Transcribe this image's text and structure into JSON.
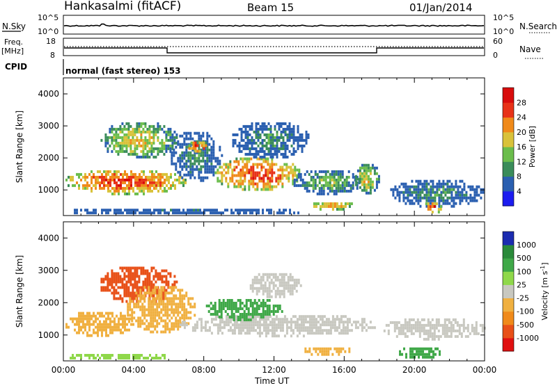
{
  "header": {
    "station": "Hankasalmi (fitACF)",
    "beam": "Beam 15",
    "date": "01/Jan/2014"
  },
  "nsky_panel": {
    "left_label": "N.Sky",
    "right_label": "N.Search",
    "left_ticks": [
      "10^5",
      "10^0"
    ],
    "right_ticks": [
      "10^5",
      "10^0"
    ]
  },
  "freq_panel": {
    "left_label_1": "Freq.",
    "left_label_2": "[MHz]",
    "right_label": "Nave",
    "left_ticks": [
      "18",
      "8"
    ],
    "right_ticks": [
      "60",
      "0"
    ]
  },
  "cpid_panel": {
    "label": "CPID",
    "text": "normal (fast stereo) 153"
  },
  "chart_data": [
    {
      "type": "heatmap",
      "name": "power",
      "xlabel": "Time UT",
      "ylabel": "Slant Range [km]",
      "xlim": [
        0,
        24
      ],
      "ylim": [
        200,
        4500
      ],
      "yticks": [
        "1000",
        "2000",
        "3000",
        "4000"
      ],
      "xticks": [
        "00:00",
        "04:00",
        "08:00",
        "12:00",
        "16:00",
        "20:00",
        "00:00"
      ],
      "colorbar": {
        "label": "Power [dB]",
        "ticks": [
          "4",
          "8",
          "12",
          "16",
          "20",
          "24",
          "28"
        ],
        "colors": [
          "#1c1cf0",
          "#2a5fb0",
          "#3a8c5a",
          "#6bbd4c",
          "#d9c23a",
          "#f08a1a",
          "#e83218",
          "#d80c0c"
        ]
      },
      "regions": [
        {
          "t0": 0.0,
          "t1": 7.0,
          "r0": 900,
          "r1": 1700,
          "level": 28
        },
        {
          "t0": 2.0,
          "t1": 6.5,
          "r0": 2000,
          "r1": 3200,
          "level": 20
        },
        {
          "t0": 6.0,
          "t1": 9.0,
          "r0": 1300,
          "r1": 2900,
          "level": 12
        },
        {
          "t0": 7.0,
          "t1": 8.2,
          "r0": 2200,
          "r1": 2600,
          "level": 28
        },
        {
          "t0": 8.5,
          "t1": 13.5,
          "r0": 1000,
          "r1": 2100,
          "level": 28
        },
        {
          "t0": 9.5,
          "t1": 14.0,
          "r0": 2000,
          "r1": 3200,
          "level": 12
        },
        {
          "t0": 13.0,
          "t1": 17.0,
          "r0": 900,
          "r1": 1700,
          "level": 16
        },
        {
          "t0": 14.0,
          "t1": 16.5,
          "r0": 400,
          "r1": 700,
          "level": 24
        },
        {
          "t0": 16.5,
          "t1": 18.0,
          "r0": 900,
          "r1": 1900,
          "level": 20
        },
        {
          "t0": 18.5,
          "t1": 24.0,
          "r0": 500,
          "r1": 1400,
          "level": 12
        },
        {
          "t0": 20.5,
          "t1": 21.5,
          "r0": 300,
          "r1": 700,
          "level": 28
        },
        {
          "t0": 0.0,
          "t1": 14.0,
          "r0": 250,
          "r1": 500,
          "level": 8
        }
      ]
    },
    {
      "type": "heatmap",
      "name": "velocity",
      "xlabel": "Time UT",
      "ylabel": "Slant Range [km]",
      "xlim": [
        0,
        24
      ],
      "ylim": [
        200,
        4500
      ],
      "yticks": [
        "1000",
        "2000",
        "3000",
        "4000"
      ],
      "xticks": [
        "00:00",
        "04:00",
        "08:00",
        "12:00",
        "16:00",
        "20:00",
        "00:00"
      ],
      "colorbar": {
        "label": "Velocity [m s^-1]",
        "ticks": [
          "1000",
          "500",
          "100",
          "25",
          "-25",
          "-100",
          "-500",
          "-1000"
        ],
        "colors": [
          "#1c2cb0",
          "#2a8a3a",
          "#3fa848",
          "#8fd84a",
          "#c8c8c0",
          "#f0b040",
          "#f08a1a",
          "#e85018",
          "#e01010"
        ]
      },
      "regions": [
        {
          "t0": 0.0,
          "t1": 4.0,
          "r0": 1000,
          "r1": 1800,
          "level": -100
        },
        {
          "t0": 2.0,
          "t1": 6.5,
          "r0": 2000,
          "r1": 3200,
          "level": -500
        },
        {
          "t0": 3.5,
          "t1": 7.5,
          "r0": 1100,
          "r1": 2600,
          "level": -100
        },
        {
          "t0": 6.5,
          "t1": 18.0,
          "r0": 1000,
          "r1": 1700,
          "level": 0
        },
        {
          "t0": 10.5,
          "t1": 13.5,
          "r0": 2200,
          "r1": 3000,
          "level": 0
        },
        {
          "t0": 8.0,
          "t1": 12.5,
          "r0": 1500,
          "r1": 2200,
          "level": 100
        },
        {
          "t0": 13.5,
          "t1": 16.5,
          "r0": 400,
          "r1": 700,
          "level": -100
        },
        {
          "t0": 18.0,
          "t1": 24.0,
          "r0": 900,
          "r1": 1600,
          "level": 0
        },
        {
          "t0": 19.0,
          "t1": 21.5,
          "r0": 300,
          "r1": 700,
          "level": 100
        },
        {
          "t0": 0.0,
          "t1": 6.0,
          "r0": 250,
          "r1": 500,
          "level": 25
        }
      ]
    }
  ]
}
